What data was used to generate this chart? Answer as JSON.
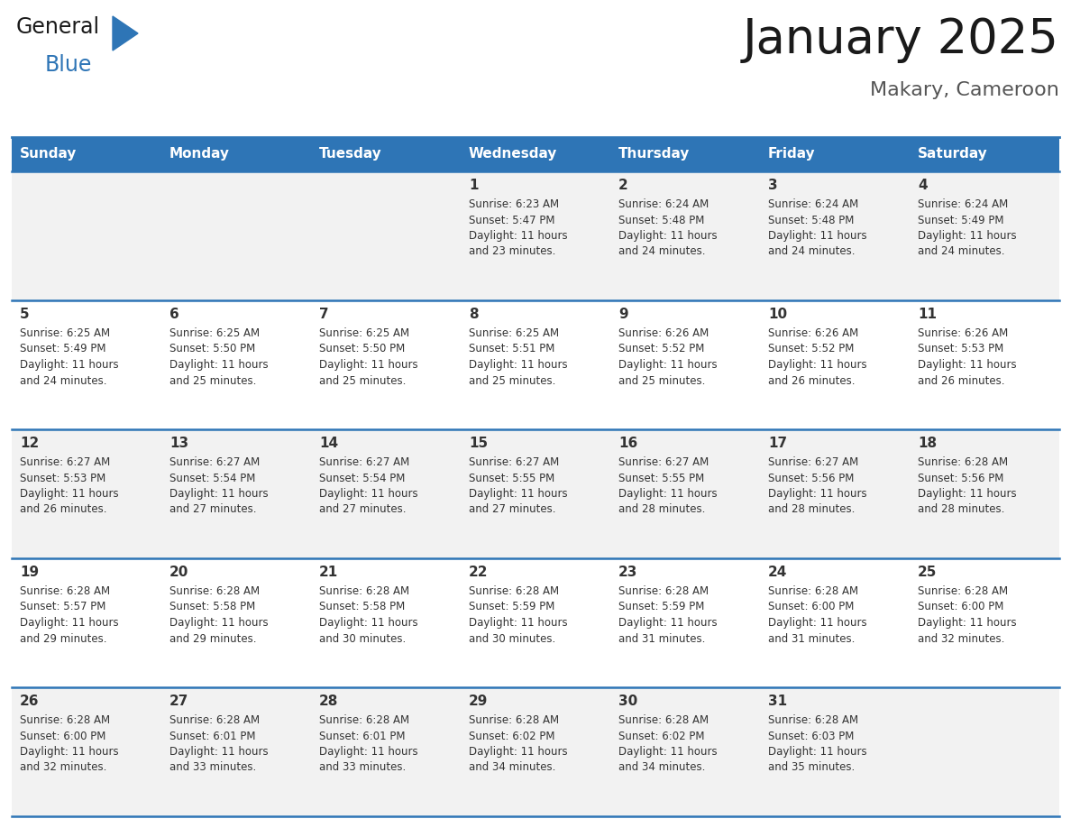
{
  "title": "January 2025",
  "subtitle": "Makary, Cameroon",
  "days_of_week": [
    "Sunday",
    "Monday",
    "Tuesday",
    "Wednesday",
    "Thursday",
    "Friday",
    "Saturday"
  ],
  "header_bg": "#2E75B6",
  "header_text_color": "#FFFFFF",
  "cell_bg_even": "#F2F2F2",
  "cell_bg_odd": "#FFFFFF",
  "cell_border_color": "#2E75B6",
  "day_num_color": "#333333",
  "info_text_color": "#333333",
  "logo_general_color": "#1a1a1a",
  "logo_blue_color": "#2E75B6",
  "calendar_data": [
    {
      "day_num": 0,
      "info": ""
    },
    {
      "day_num": 0,
      "info": ""
    },
    {
      "day_num": 0,
      "info": ""
    },
    {
      "day_num": 1,
      "info": "Sunrise: 6:23 AM\nSunset: 5:47 PM\nDaylight: 11 hours\nand 23 minutes."
    },
    {
      "day_num": 2,
      "info": "Sunrise: 6:24 AM\nSunset: 5:48 PM\nDaylight: 11 hours\nand 24 minutes."
    },
    {
      "day_num": 3,
      "info": "Sunrise: 6:24 AM\nSunset: 5:48 PM\nDaylight: 11 hours\nand 24 minutes."
    },
    {
      "day_num": 4,
      "info": "Sunrise: 6:24 AM\nSunset: 5:49 PM\nDaylight: 11 hours\nand 24 minutes."
    },
    {
      "day_num": 5,
      "info": "Sunrise: 6:25 AM\nSunset: 5:49 PM\nDaylight: 11 hours\nand 24 minutes."
    },
    {
      "day_num": 6,
      "info": "Sunrise: 6:25 AM\nSunset: 5:50 PM\nDaylight: 11 hours\nand 25 minutes."
    },
    {
      "day_num": 7,
      "info": "Sunrise: 6:25 AM\nSunset: 5:50 PM\nDaylight: 11 hours\nand 25 minutes."
    },
    {
      "day_num": 8,
      "info": "Sunrise: 6:25 AM\nSunset: 5:51 PM\nDaylight: 11 hours\nand 25 minutes."
    },
    {
      "day_num": 9,
      "info": "Sunrise: 6:26 AM\nSunset: 5:52 PM\nDaylight: 11 hours\nand 25 minutes."
    },
    {
      "day_num": 10,
      "info": "Sunrise: 6:26 AM\nSunset: 5:52 PM\nDaylight: 11 hours\nand 26 minutes."
    },
    {
      "day_num": 11,
      "info": "Sunrise: 6:26 AM\nSunset: 5:53 PM\nDaylight: 11 hours\nand 26 minutes."
    },
    {
      "day_num": 12,
      "info": "Sunrise: 6:27 AM\nSunset: 5:53 PM\nDaylight: 11 hours\nand 26 minutes."
    },
    {
      "day_num": 13,
      "info": "Sunrise: 6:27 AM\nSunset: 5:54 PM\nDaylight: 11 hours\nand 27 minutes."
    },
    {
      "day_num": 14,
      "info": "Sunrise: 6:27 AM\nSunset: 5:54 PM\nDaylight: 11 hours\nand 27 minutes."
    },
    {
      "day_num": 15,
      "info": "Sunrise: 6:27 AM\nSunset: 5:55 PM\nDaylight: 11 hours\nand 27 minutes."
    },
    {
      "day_num": 16,
      "info": "Sunrise: 6:27 AM\nSunset: 5:55 PM\nDaylight: 11 hours\nand 28 minutes."
    },
    {
      "day_num": 17,
      "info": "Sunrise: 6:27 AM\nSunset: 5:56 PM\nDaylight: 11 hours\nand 28 minutes."
    },
    {
      "day_num": 18,
      "info": "Sunrise: 6:28 AM\nSunset: 5:56 PM\nDaylight: 11 hours\nand 28 minutes."
    },
    {
      "day_num": 19,
      "info": "Sunrise: 6:28 AM\nSunset: 5:57 PM\nDaylight: 11 hours\nand 29 minutes."
    },
    {
      "day_num": 20,
      "info": "Sunrise: 6:28 AM\nSunset: 5:58 PM\nDaylight: 11 hours\nand 29 minutes."
    },
    {
      "day_num": 21,
      "info": "Sunrise: 6:28 AM\nSunset: 5:58 PM\nDaylight: 11 hours\nand 30 minutes."
    },
    {
      "day_num": 22,
      "info": "Sunrise: 6:28 AM\nSunset: 5:59 PM\nDaylight: 11 hours\nand 30 minutes."
    },
    {
      "day_num": 23,
      "info": "Sunrise: 6:28 AM\nSunset: 5:59 PM\nDaylight: 11 hours\nand 31 minutes."
    },
    {
      "day_num": 24,
      "info": "Sunrise: 6:28 AM\nSunset: 6:00 PM\nDaylight: 11 hours\nand 31 minutes."
    },
    {
      "day_num": 25,
      "info": "Sunrise: 6:28 AM\nSunset: 6:00 PM\nDaylight: 11 hours\nand 32 minutes."
    },
    {
      "day_num": 26,
      "info": "Sunrise: 6:28 AM\nSunset: 6:00 PM\nDaylight: 11 hours\nand 32 minutes."
    },
    {
      "day_num": 27,
      "info": "Sunrise: 6:28 AM\nSunset: 6:01 PM\nDaylight: 11 hours\nand 33 minutes."
    },
    {
      "day_num": 28,
      "info": "Sunrise: 6:28 AM\nSunset: 6:01 PM\nDaylight: 11 hours\nand 33 minutes."
    },
    {
      "day_num": 29,
      "info": "Sunrise: 6:28 AM\nSunset: 6:02 PM\nDaylight: 11 hours\nand 34 minutes."
    },
    {
      "day_num": 30,
      "info": "Sunrise: 6:28 AM\nSunset: 6:02 PM\nDaylight: 11 hours\nand 34 minutes."
    },
    {
      "day_num": 31,
      "info": "Sunrise: 6:28 AM\nSunset: 6:03 PM\nDaylight: 11 hours\nand 35 minutes."
    },
    {
      "day_num": 0,
      "info": ""
    }
  ],
  "num_weeks": 5,
  "title_fontsize": 38,
  "subtitle_fontsize": 16,
  "header_fontsize": 11,
  "daynum_fontsize": 11,
  "info_fontsize": 8.5
}
